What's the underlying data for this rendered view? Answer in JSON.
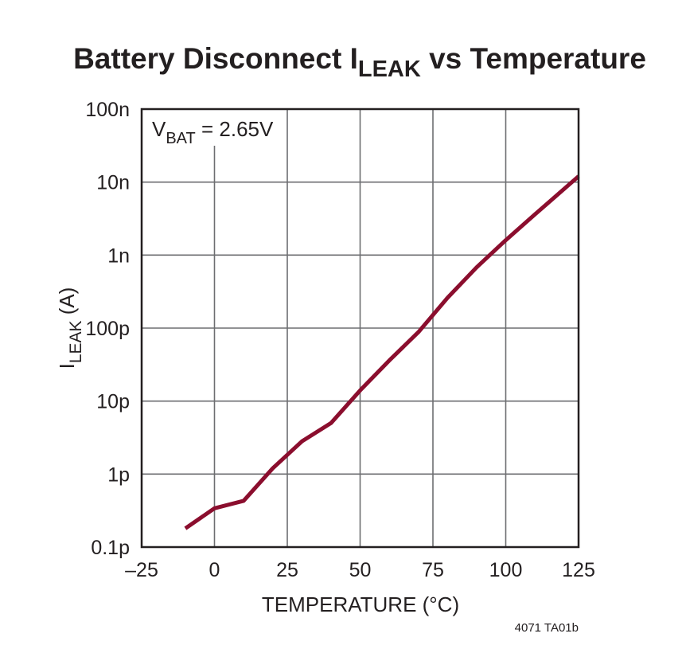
{
  "chart_data": {
    "type": "line",
    "title_main": "Battery Disconnect I",
    "title_sub": "LEAK",
    "title_tail": " vs Temperature",
    "xlabel": "TEMPERATURE (°C)",
    "ylabel_main": "I",
    "ylabel_sub": "LEAK",
    "ylabel_tail": " (A)",
    "xlim": [
      -25,
      125
    ],
    "ylim": [
      1e-13,
      1e-07
    ],
    "yscale": "log",
    "grid": true,
    "x_ticks": [
      -25,
      0,
      25,
      50,
      75,
      100,
      125
    ],
    "x_tick_labels": [
      "–25",
      "0",
      "25",
      "50",
      "75",
      "100",
      "125"
    ],
    "y_ticks": [
      1e-13,
      1e-12,
      1e-11,
      1e-10,
      1e-09,
      1e-08,
      1e-07
    ],
    "y_tick_labels": [
      "0.1p",
      "1p",
      "10p",
      "100p",
      "1n",
      "10n",
      "100n"
    ],
    "annotation": {
      "v": "V",
      "sub": "BAT",
      "tail": " = 2.65V"
    },
    "series": [
      {
        "name": "ILEAK",
        "color": "#8b0e2e",
        "x": [
          -10,
          0,
          10,
          20,
          30,
          40,
          50,
          60,
          70,
          80,
          90,
          100,
          110,
          125
        ],
        "y": [
          1.8e-13,
          3.4e-13,
          4.3e-13,
          1.2e-12,
          2.8e-12,
          5e-12,
          1.4e-11,
          3.6e-11,
          8.8e-11,
          2.6e-10,
          6.8e-10,
          1.6e-09,
          3.6e-09,
          1.2e-08
        ]
      }
    ],
    "footnote": "4071 TA01b"
  }
}
